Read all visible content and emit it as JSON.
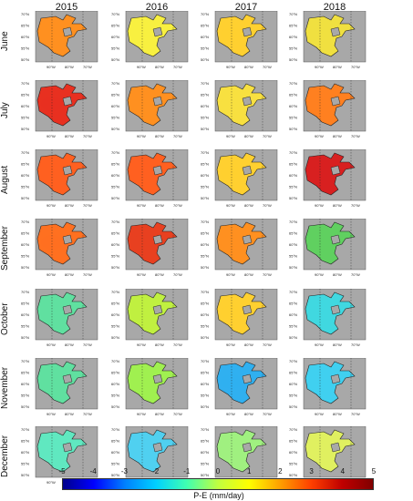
{
  "years": [
    "2015",
    "2016",
    "2017",
    "2018"
  ],
  "months": [
    "June",
    "July",
    "August",
    "September",
    "October",
    "November",
    "December"
  ],
  "map_labels": {
    "lat": [
      "70°N",
      "65°N",
      "60°N",
      "55°N",
      "50°N"
    ],
    "lon": [
      "90°W",
      "80°W",
      "70°W"
    ]
  },
  "colorbar": {
    "ticks": [
      "-5",
      "-4",
      "-3",
      "-2",
      "-1",
      "0",
      "1",
      "2",
      "3",
      "4",
      "5"
    ],
    "label": "P-E (mm/day)",
    "colors": [
      "#00008b",
      "#0000ff",
      "#0080ff",
      "#00d0ff",
      "#40ffb0",
      "#c0ff40",
      "#ffff00",
      "#ffa000",
      "#ff4000",
      "#c00000",
      "#800000"
    ]
  },
  "panel_colors": [
    [
      "#ff9020",
      "#f8f040",
      "#ffd030",
      "#f0e040"
    ],
    [
      "#e83020",
      "#ff9020",
      "#f8e040",
      "#ff8020"
    ],
    [
      "#ff6020",
      "#ff6020",
      "#ffd030",
      "#d82020"
    ],
    [
      "#ff7020",
      "#e84020",
      "#ff9020",
      "#60d060"
    ],
    [
      "#60e0a0",
      "#c0f040",
      "#ffd030",
      "#40d8e0"
    ],
    [
      "#60e0a0",
      "#a0f050",
      "#30b0f0",
      "#40d0f0"
    ],
    [
      "#60e8c0",
      "#50d0f0",
      "#a0f080",
      "#e0f060"
    ]
  ]
}
